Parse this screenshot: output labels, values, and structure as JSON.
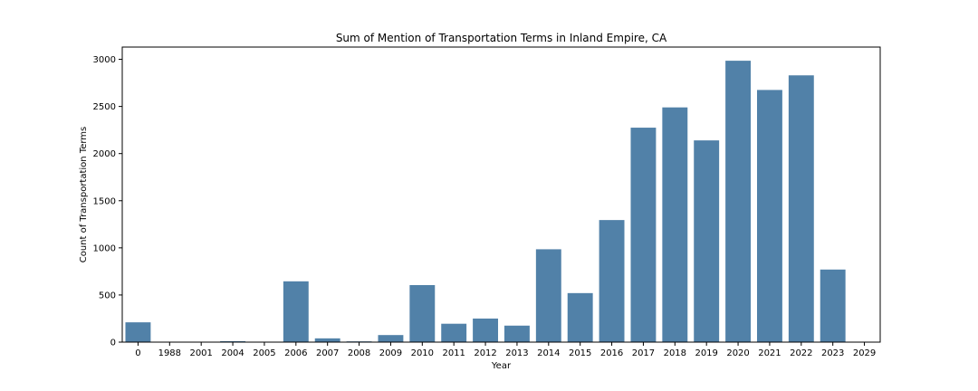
{
  "chart_data": {
    "type": "bar",
    "title": "Sum of Mention of Transportation Terms in Inland Empire, CA",
    "xlabel": "Year",
    "ylabel": "Count of Transportation Terms",
    "categories": [
      "0",
      "1988",
      "2001",
      "2004",
      "2005",
      "2006",
      "2007",
      "2008",
      "2009",
      "2010",
      "2011",
      "2012",
      "2013",
      "2014",
      "2015",
      "2016",
      "2017",
      "2018",
      "2019",
      "2020",
      "2021",
      "2022",
      "2023",
      "2029"
    ],
    "values": [
      210,
      2,
      2,
      10,
      2,
      645,
      40,
      8,
      75,
      605,
      195,
      250,
      175,
      985,
      520,
      1295,
      2275,
      2490,
      2140,
      2985,
      2675,
      2830,
      770,
      2
    ],
    "ylim": [
      0,
      3130
    ],
    "yticks": [
      0,
      500,
      1000,
      1500,
      2000,
      2500,
      3000
    ],
    "ytick_labels": [
      "0",
      "500",
      "1000",
      "1500",
      "2000",
      "2500",
      "3000"
    ],
    "grid": false,
    "bar_color": "#5181a8"
  }
}
